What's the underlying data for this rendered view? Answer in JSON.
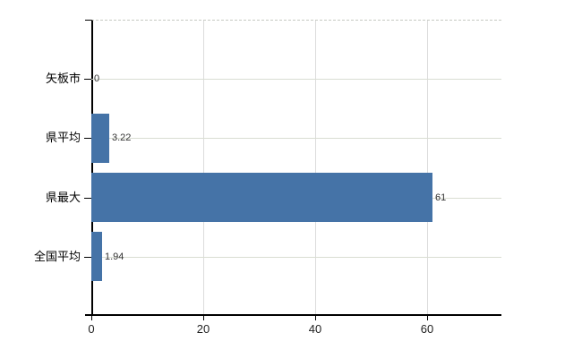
{
  "chart_data": {
    "type": "bar",
    "orientation": "horizontal",
    "title": "",
    "categories": [
      "矢板市",
      "県平均",
      "県最大",
      "全国平均"
    ],
    "values": [
      0,
      3.22,
      61,
      1.94
    ],
    "value_labels": [
      "0",
      "3.22",
      "61",
      "1.94"
    ],
    "x_ticks": [
      0,
      20,
      40,
      60
    ],
    "x_tick_labels": [
      "0",
      "20",
      "40",
      "60"
    ],
    "xlim": [
      0,
      73.3
    ],
    "grid": true,
    "legend": "none",
    "bar_color": "#4573a7",
    "v_grid_color": "#dcdcdc",
    "h_grid_color": "#d9ddd2",
    "axis_color": "#000000",
    "plot_top_border_color": "#c6cac2",
    "background_color": "#ffffff"
  }
}
